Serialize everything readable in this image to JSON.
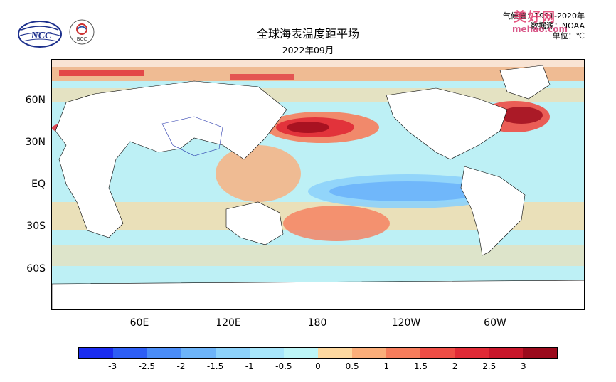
{
  "header": {
    "title": "全球海表温度距平场",
    "subtitle": "2022年09月",
    "climatology": "气候值：1991-2020年",
    "source": "数据源：NOAA",
    "unit": "单位：℃",
    "watermark": "美好网",
    "watermark_url": "mehao.com"
  },
  "logos": {
    "ncc": "NCC",
    "bcc": "BCC"
  },
  "map": {
    "lat_labels": [
      "60N",
      "30N",
      "EQ",
      "30S",
      "60S"
    ],
    "lon_labels": [
      "60E",
      "120E",
      "180",
      "120W",
      "60W"
    ]
  },
  "colorbar": {
    "labels": [
      "-3",
      "-2.5",
      "-2",
      "-1.5",
      "-1",
      "-0.5",
      "0",
      "0.5",
      "1",
      "1.5",
      "2",
      "2.5",
      "3"
    ],
    "colors": [
      "#1a2cf0",
      "#2d5ef5",
      "#4a8cf7",
      "#6db4f9",
      "#8dd2fb",
      "#a8e6fb",
      "#bdf5f7",
      "#fdd8a0",
      "#fbae7a",
      "#f67d5c",
      "#ee4d45",
      "#e02a36",
      "#c8162a",
      "#9b0a1c"
    ]
  }
}
